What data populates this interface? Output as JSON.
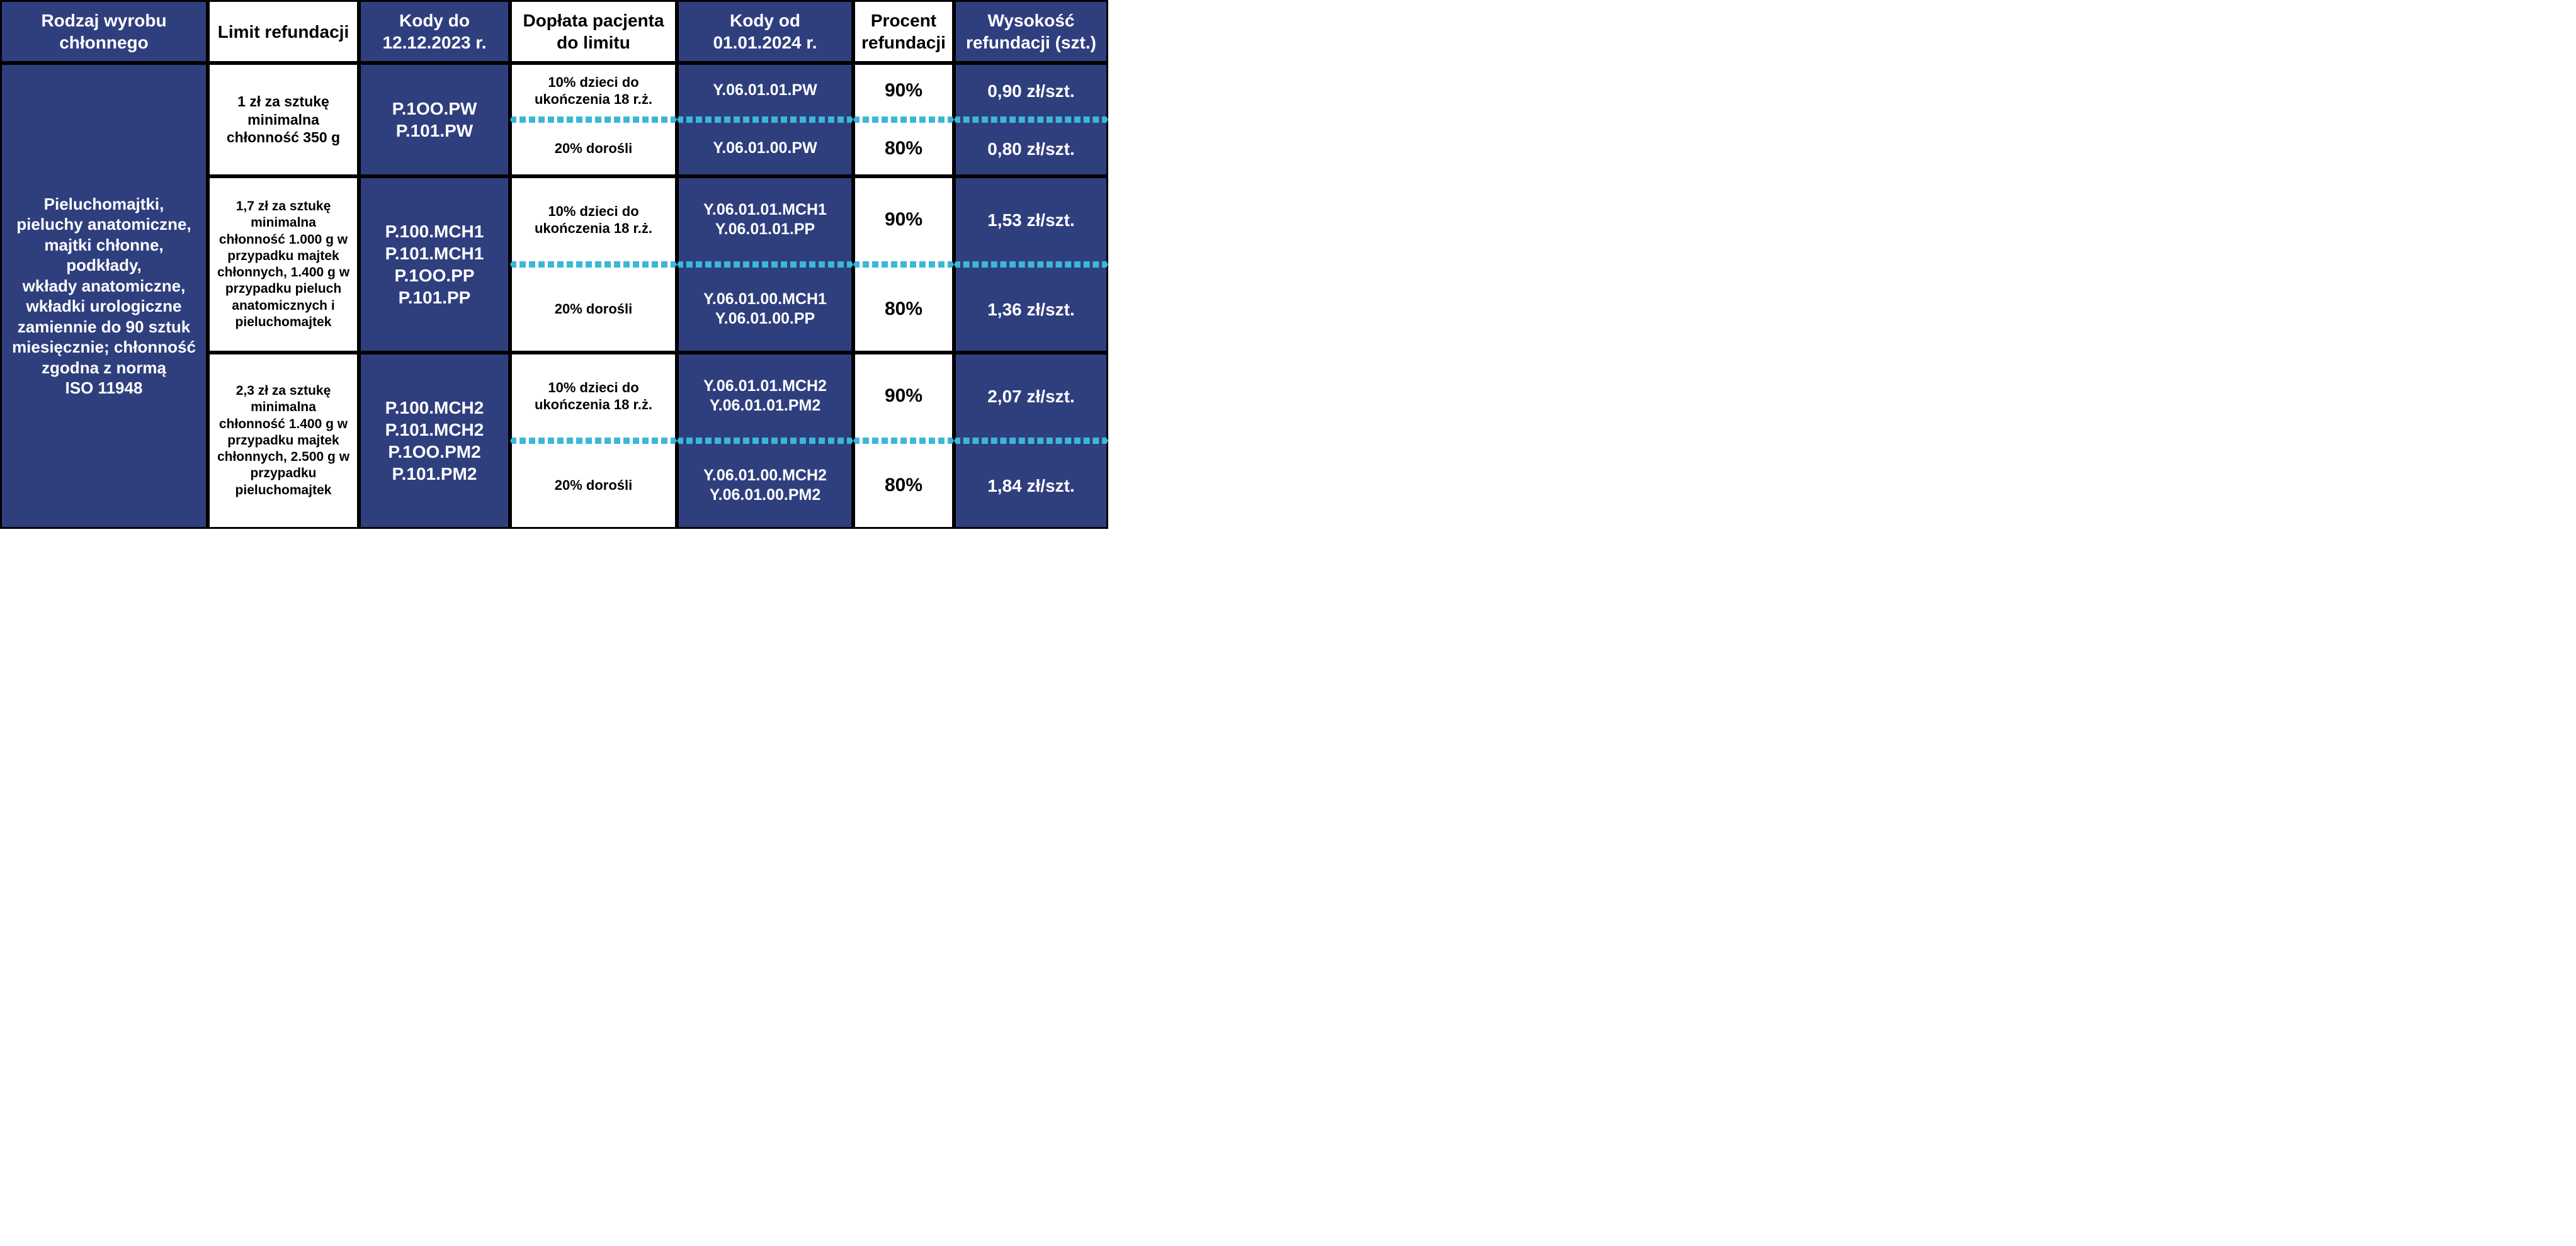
{
  "colors": {
    "blue_bg": "#2f3f7e",
    "white_bg": "#ffffff",
    "border": "#000000",
    "dash": "#3bb7d9",
    "text_on_blue": "#ffffff",
    "text_on_white": "#000000"
  },
  "headers": {
    "c1": "Rodzaj wyrobu chłonnego",
    "c2": "Limit refundacji",
    "c3": "Kody do 12.12.2023 r.",
    "c4": "Dopłata pacjenta do limitu",
    "c5": "Kody od 01.01.2024 r.",
    "c6": "Procent refundacji",
    "c7": "Wysokość refundacji (szt.)"
  },
  "product_type": "Pieluchomajtki,\npieluchy anatomiczne,\nmajtki chłonne,\npodkłady,\nwkłady anatomiczne,\nwkładki urologiczne\nzamiennie do 90 sztuk\nmiesięcznie; chłonność\nzgodna z normą\nISO 11948",
  "groups": [
    {
      "limit": "1 zł za sztukę minimalna chłonność 350 g",
      "codes_old": "P.1OO.PW\nP.101.PW",
      "rows": [
        {
          "copay": "10% dzieci do ukończenia 18 r.ż.",
          "codes_new": "Y.06.01.01.PW",
          "percent": "90%",
          "amount": "0,90 zł/szt."
        },
        {
          "copay": "20% dorośli",
          "codes_new": "Y.06.01.00.PW",
          "percent": "80%",
          "amount": "0,80 zł/szt."
        }
      ]
    },
    {
      "limit": "1,7 zł za sztukę minimalna chłonność 1.000 g w przypadku majtek chłonnych, 1.400 g w przypadku pieluch anatomicznych i pieluchomajtek",
      "codes_old": "P.100.MCH1\nP.101.MCH1\nP.1OO.PP\nP.101.PP",
      "rows": [
        {
          "copay": "10% dzieci do ukończenia 18 r.ż.",
          "codes_new": "Y.06.01.01.MCH1\nY.06.01.01.PP",
          "percent": "90%",
          "amount": "1,53 zł/szt."
        },
        {
          "copay": "20% dorośli",
          "codes_new": "Y.06.01.00.MCH1\nY.06.01.00.PP",
          "percent": "80%",
          "amount": "1,36 zł/szt."
        }
      ]
    },
    {
      "limit": "2,3 zł za sztukę minimalna chłonność 1.400 g w przypadku majtek chłonnych, 2.500 g w przypadku pieluchomajtek",
      "codes_old": "P.100.MCH2\nP.101.MCH2\nP.1OO.PM2\nP.101.PM2",
      "rows": [
        {
          "copay": "10% dzieci do ukończenia 18 r.ż.",
          "codes_new": "Y.06.01.01.MCH2\nY.06.01.01.PM2",
          "percent": "90%",
          "amount": "2,07 zł/szt."
        },
        {
          "copay": "20% dorośli",
          "codes_new": "Y.06.01.00.MCH2\nY.06.01.00.PM2",
          "percent": "80%",
          "amount": "1,84 zł/szt."
        }
      ]
    }
  ]
}
